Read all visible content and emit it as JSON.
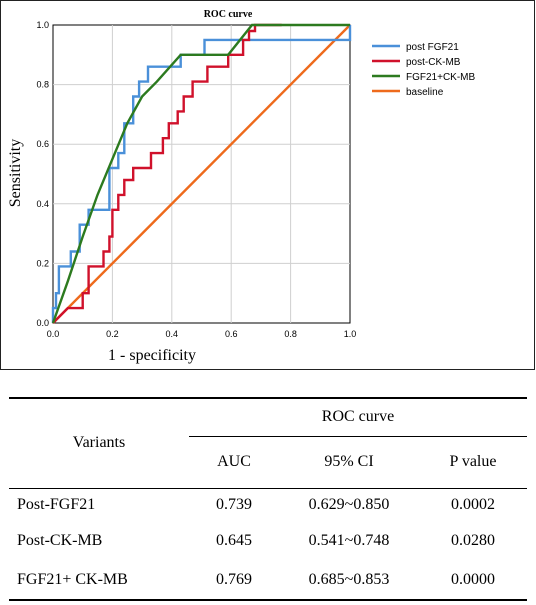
{
  "chart_data": {
    "type": "line",
    "title": "ROC curve",
    "xlabel": "1 - specificity",
    "ylabel": "Sensitivity",
    "xlim": [
      0,
      1
    ],
    "ylim": [
      0,
      1
    ],
    "xticks": [
      "0.0",
      "0.2",
      "0.4",
      "0.6",
      "0.8",
      "1.0"
    ],
    "yticks": [
      "0.0",
      "0.2",
      "0.4",
      "0.6",
      "0.8",
      "1.0"
    ],
    "grid": true,
    "legend_position": "right",
    "series": [
      {
        "name": "post FGF21",
        "color": "#4a90d9",
        "x": [
          0,
          0,
          0.01,
          0.01,
          0.02,
          0.02,
          0.06,
          0.06,
          0.09,
          0.09,
          0.12,
          0.12,
          0.19,
          0.19,
          0.22,
          0.22,
          0.24,
          0.24,
          0.27,
          0.27,
          0.29,
          0.29,
          0.32,
          0.32,
          0.43,
          0.43,
          0.51,
          0.51,
          1.0,
          1.0
        ],
        "y": [
          0,
          0.05,
          0.05,
          0.1,
          0.1,
          0.19,
          0.19,
          0.24,
          0.24,
          0.33,
          0.33,
          0.38,
          0.38,
          0.52,
          0.52,
          0.57,
          0.57,
          0.67,
          0.67,
          0.76,
          0.76,
          0.81,
          0.81,
          0.86,
          0.86,
          0.9,
          0.9,
          0.95,
          0.95,
          1.0
        ]
      },
      {
        "name": "post-CK-MB",
        "color": "#d0112b",
        "x": [
          0,
          0.05,
          0.1,
          0.1,
          0.12,
          0.12,
          0.17,
          0.17,
          0.19,
          0.19,
          0.2,
          0.2,
          0.22,
          0.22,
          0.24,
          0.24,
          0.27,
          0.27,
          0.33,
          0.33,
          0.37,
          0.37,
          0.39,
          0.39,
          0.42,
          0.42,
          0.44,
          0.44,
          0.47,
          0.47,
          0.52,
          0.52,
          0.59,
          0.59,
          0.64,
          0.64,
          0.66,
          0.66,
          0.68,
          0.68,
          0.71,
          0.71,
          0.74,
          0.74,
          0.77,
          0.77
        ],
        "y": [
          0,
          0.05,
          0.05,
          0.1,
          0.1,
          0.19,
          0.19,
          0.24,
          0.24,
          0.29,
          0.29,
          0.38,
          0.38,
          0.43,
          0.43,
          0.48,
          0.48,
          0.52,
          0.52,
          0.57,
          0.57,
          0.62,
          0.62,
          0.67,
          0.67,
          0.71,
          0.71,
          0.76,
          0.76,
          0.81,
          0.81,
          0.86,
          0.86,
          0.9,
          0.9,
          0.95,
          0.95,
          0.98,
          0.98,
          1.0,
          1.0,
          1.0,
          1.0,
          1.0,
          1.0,
          1.0
        ]
      },
      {
        "name": "FGF21+CK-MB",
        "color": "#2c7a1f",
        "x": [
          0,
          0.05,
          0.1,
          0.15,
          0.2,
          0.25,
          0.3,
          0.35,
          0.43,
          0.59,
          0.67,
          0.76,
          1.0
        ],
        "y": [
          0,
          0.14,
          0.29,
          0.43,
          0.55,
          0.67,
          0.76,
          0.81,
          0.9,
          0.9,
          1.0,
          1.0,
          1.0
        ]
      },
      {
        "name": "baseline",
        "color": "#ee6a1c",
        "x": [
          0,
          1
        ],
        "y": [
          0,
          1
        ]
      }
    ]
  },
  "table": {
    "group_header": "ROC curve",
    "variants_header": "Variants",
    "columns": [
      "AUC",
      "95% CI",
      "P value"
    ],
    "rows": [
      {
        "variant": "Post-FGF21",
        "auc": "0.739",
        "ci": "0.629~0.850",
        "p": "0.0002"
      },
      {
        "variant": "Post-CK-MB",
        "auc": "0.645",
        "ci": "0.541~0.748",
        "p": "0.0280"
      },
      {
        "variant": "FGF21+ CK-MB",
        "auc": "0.769",
        "ci": "0.685~0.853",
        "p": "0.0000"
      }
    ]
  }
}
